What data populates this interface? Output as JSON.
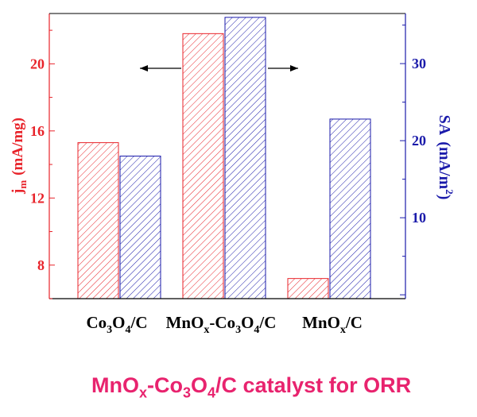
{
  "chart_data": {
    "type": "bar",
    "categories": [
      "Co3O4/C",
      "MnOx-Co3O4/C",
      "MnOx/C"
    ],
    "category_labels": [
      [
        {
          "t": "Co",
          "s": false
        },
        {
          "t": "3",
          "s": true
        },
        {
          "t": "O",
          "s": false
        },
        {
          "t": "4",
          "s": true
        },
        {
          "t": "/C",
          "s": false
        }
      ],
      [
        {
          "t": "MnO",
          "s": false
        },
        {
          "t": "x",
          "s": true
        },
        {
          "t": "-Co",
          "s": false
        },
        {
          "t": "3",
          "s": true
        },
        {
          "t": "O",
          "s": false
        },
        {
          "t": "4",
          "s": true
        },
        {
          "t": "/C",
          "s": false
        }
      ],
      [
        {
          "t": "MnO",
          "s": false
        },
        {
          "t": "x",
          "s": true
        },
        {
          "t": "/C",
          "s": false
        }
      ]
    ],
    "series": [
      {
        "axis": "left",
        "values": [
          15.3,
          21.8,
          7.2
        ],
        "color": "#e8232a"
      },
      {
        "axis": "right",
        "values": [
          18.0,
          36.0,
          22.8
        ],
        "color": "#1a1aaa"
      }
    ],
    "left_axis": {
      "label_main": "j",
      "label_sub": "m",
      "label_unit": "(mA/mg)",
      "ticks": [
        "8",
        "12",
        "16",
        "20"
      ],
      "ylim": [
        6.0,
        23.0
      ],
      "color": "#e8232a"
    },
    "right_axis": {
      "label_main": "SA",
      "label_unit": "(mA/m",
      "label_sup": "2",
      "label_close": ")",
      "ticks": [
        "10",
        "20",
        "30"
      ],
      "ylim": [
        -0.5,
        36.5
      ],
      "color": "#1a1aaa"
    },
    "grid": false,
    "hatched": true
  },
  "caption": {
    "parts": [
      {
        "t": "MnO",
        "s": false
      },
      {
        "t": "x",
        "s": true
      },
      {
        "t": "-Co",
        "s": false
      },
      {
        "t": "3",
        "s": true
      },
      {
        "t": "O",
        "s": false
      },
      {
        "t": "4",
        "s": true
      },
      {
        "t": "/C catalyst for ORR",
        "s": false
      }
    ],
    "color": "#e8236e"
  }
}
